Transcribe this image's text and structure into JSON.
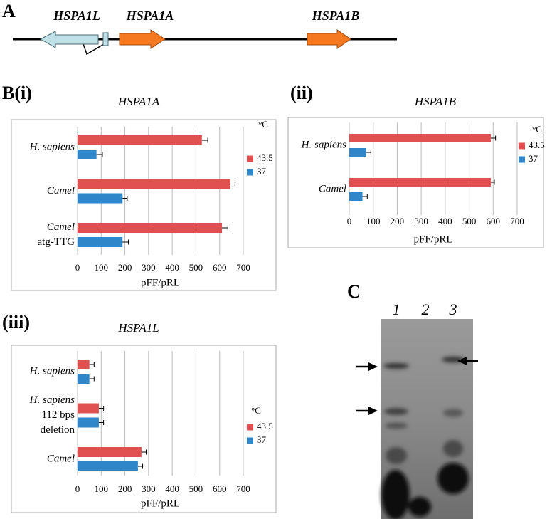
{
  "panel_a": {
    "label": "A",
    "genes": [
      "HSPA1L",
      "HSPA1A",
      "HSPA1B"
    ]
  },
  "chart_data": [
    {
      "type": "bar",
      "panel_label": "B(i)",
      "title": "HSPA1A",
      "x_label": "pFF/pRL",
      "legend_title": "°C",
      "categories": [
        [
          "H. sapiens"
        ],
        [
          "Camel"
        ],
        [
          "Camel",
          "atg-TTG"
        ]
      ],
      "series": [
        {
          "name": "43.5",
          "color": "#e05050",
          "values": [
            525,
            645,
            610
          ],
          "errors": [
            25,
            20,
            25
          ]
        },
        {
          "name": "37",
          "color": "#2f86c9",
          "values": [
            80,
            190,
            190
          ],
          "errors": [
            25,
            20,
            25
          ]
        }
      ],
      "xlim": [
        0,
        700
      ],
      "xticks": [
        0,
        100,
        200,
        300,
        400,
        500,
        600,
        700
      ],
      "grid": true
    },
    {
      "type": "bar",
      "panel_label": "(ii)",
      "title": "HSPA1B",
      "x_label": "pFF/pRL",
      "legend_title": "°C",
      "categories": [
        [
          "H. sapiens"
        ],
        [
          "Camel"
        ]
      ],
      "series": [
        {
          "name": "43.5",
          "color": "#e05050",
          "values": [
            590,
            590
          ],
          "errors": [
            20,
            15
          ]
        },
        {
          "name": "37",
          "color": "#2f86c9",
          "values": [
            70,
            55
          ],
          "errors": [
            20,
            20
          ]
        }
      ],
      "xlim": [
        0,
        700
      ],
      "xticks": [
        0,
        100,
        200,
        300,
        400,
        500,
        600,
        700
      ],
      "grid": true
    },
    {
      "type": "bar",
      "panel_label": "(iii)",
      "title": "HSPA1L",
      "x_label": "pFF/pRL",
      "legend_title": "°C",
      "categories": [
        [
          "H. sapiens"
        ],
        [
          "H. sapiens",
          "112 bps",
          "deletion"
        ],
        [
          "Camel"
        ]
      ],
      "series": [
        {
          "name": "43.5",
          "color": "#e05050",
          "values": [
            50,
            90,
            270
          ],
          "errors": [
            20,
            20,
            20
          ]
        },
        {
          "name": "37",
          "color": "#2f86c9",
          "values": [
            50,
            90,
            255
          ],
          "errors": [
            20,
            20,
            20
          ]
        }
      ],
      "xlim": [
        0,
        700
      ],
      "xticks": [
        0,
        100,
        200,
        300,
        400,
        500,
        600,
        700
      ],
      "grid": true
    }
  ],
  "panel_c": {
    "label": "C",
    "lanes": [
      "1",
      "2",
      "3"
    ]
  }
}
